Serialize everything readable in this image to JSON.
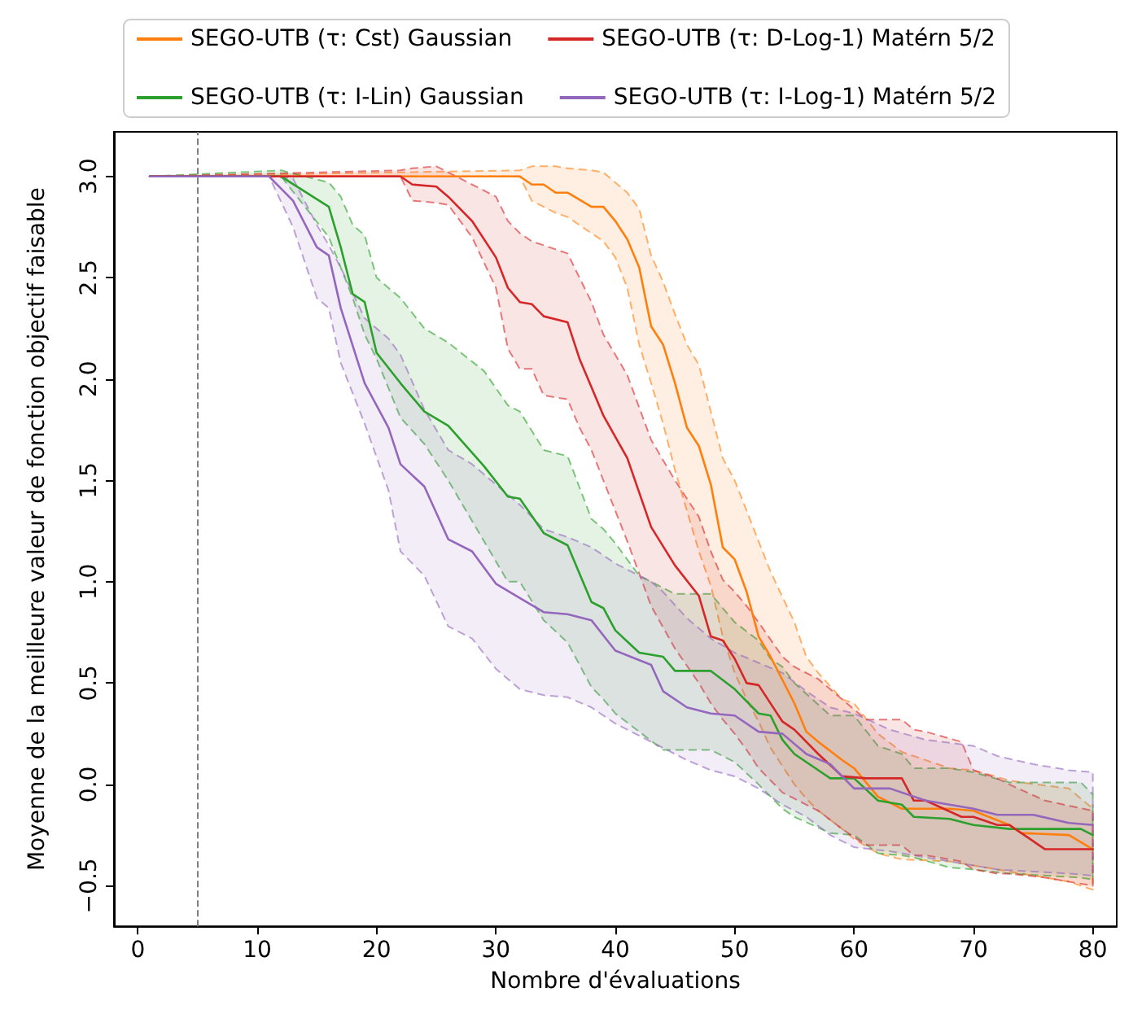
{
  "chart_data": {
    "type": "line",
    "xlabel": "Nombre d'évaluations",
    "ylabel": "Moyenne de la meilleure valeur de fonction objectif faisable",
    "xlim": [
      -2,
      82
    ],
    "xticks": [
      0,
      10,
      20,
      30,
      40,
      50,
      60,
      70,
      80
    ],
    "ylim": [
      -0.7,
      3.22
    ],
    "yticks": [
      {
        "value": -0.5,
        "label": "−0.5"
      },
      {
        "value": 0,
        "label": "0.0"
      },
      0.5,
      {
        "value": 1,
        "label": "1.0"
      },
      1.5,
      {
        "value": 2,
        "label": "2.0"
      },
      2.5,
      {
        "value": 3,
        "label": "3.0"
      }
    ],
    "legend": "top",
    "line_style": "solid",
    "marker": "none",
    "ref_lines": [
      {
        "axis": "x",
        "value": 5,
        "color": "#808080",
        "line_style": "dashed"
      }
    ],
    "series": [
      {
        "name": "SEGO-UTB (τ: Cst) Gaussian",
        "color": "#ff7f0e",
        "x": [
          1,
          32,
          33,
          34,
          35,
          36,
          38,
          39,
          40,
          41,
          42,
          43,
          44,
          45,
          46,
          47,
          48,
          49,
          50,
          51,
          52,
          53,
          55,
          56,
          57,
          59,
          60,
          62,
          64,
          68,
          70,
          73,
          74,
          78,
          80
        ],
        "values": [
          3,
          3,
          2.96,
          2.96,
          2.92,
          2.92,
          2.85,
          2.85,
          2.78,
          2.69,
          2.55,
          2.26,
          2.17,
          1.98,
          1.76,
          1.67,
          1.48,
          1.17,
          1.11,
          0.95,
          0.73,
          0.63,
          0.4,
          0.26,
          0.21,
          0.12,
          0.08,
          -0.06,
          -0.12,
          -0.12,
          -0.13,
          -0.2,
          -0.24,
          -0.25,
          -0.32
        ],
        "upper": [
          3,
          3.03,
          3.05,
          3.05,
          3.05,
          3.04,
          3.03,
          3.02,
          2.97,
          2.92,
          2.84,
          2.61,
          2.48,
          2.32,
          2.17,
          2.07,
          1.84,
          1.61,
          1.5,
          1.35,
          1.2,
          1.05,
          0.8,
          0.63,
          0.55,
          0.42,
          0.4,
          0.25,
          0.16,
          0.08,
          0.07,
          0.02,
          0.01,
          -0.02,
          -0.12
        ],
        "lower": [
          3,
          3.0,
          2.88,
          2.85,
          2.82,
          2.8,
          2.72,
          2.68,
          2.6,
          2.45,
          2.17,
          1.98,
          1.78,
          1.55,
          1.35,
          1.15,
          0.98,
          0.73,
          0.55,
          0.42,
          0.31,
          0.18,
          0.0,
          -0.07,
          -0.13,
          -0.22,
          -0.27,
          -0.34,
          -0.37,
          -0.38,
          -0.4,
          -0.43,
          -0.44,
          -0.48,
          -0.52
        ]
      },
      {
        "name": "SEGO-UTB (τ: I-Lin) Gaussian",
        "color": "#2ca02c",
        "x": [
          1,
          12,
          16,
          17,
          18,
          19,
          20,
          22,
          24,
          26,
          29,
          31,
          32,
          34,
          36,
          38,
          39,
          40,
          42,
          44,
          45,
          48,
          50,
          52,
          53,
          54,
          55,
          58,
          60,
          62,
          64,
          65,
          68,
          70,
          73,
          79,
          80
        ],
        "values": [
          3,
          3,
          2.85,
          2.65,
          2.42,
          2.38,
          2.13,
          1.98,
          1.84,
          1.77,
          1.57,
          1.42,
          1.41,
          1.24,
          1.18,
          0.9,
          0.87,
          0.76,
          0.65,
          0.63,
          0.56,
          0.56,
          0.47,
          0.35,
          0.34,
          0.22,
          0.15,
          0.03,
          0.03,
          -0.08,
          -0.1,
          -0.16,
          -0.17,
          -0.2,
          -0.22,
          -0.22,
          -0.25
        ],
        "upper": [
          3,
          3.03,
          2.97,
          2.9,
          2.76,
          2.71,
          2.5,
          2.4,
          2.25,
          2.18,
          2.04,
          1.87,
          1.84,
          1.65,
          1.62,
          1.31,
          1.26,
          1.19,
          1.03,
          0.97,
          0.94,
          0.94,
          0.8,
          0.71,
          0.62,
          0.58,
          0.5,
          0.34,
          0.34,
          0.19,
          0.15,
          0.08,
          0.08,
          0.06,
          0.01,
          0.01,
          -0.05
        ],
        "lower": [
          3,
          3.0,
          2.7,
          2.55,
          2.4,
          2.22,
          2.1,
          1.81,
          1.68,
          1.5,
          1.2,
          1.0,
          1.0,
          0.81,
          0.7,
          0.48,
          0.42,
          0.35,
          0.26,
          0.17,
          0.17,
          0.17,
          0.11,
          0.0,
          -0.06,
          -0.12,
          -0.16,
          -0.24,
          -0.25,
          -0.34,
          -0.35,
          -0.36,
          -0.41,
          -0.42,
          -0.44,
          -0.46,
          -0.47
        ]
      },
      {
        "name": "SEGO-UTB (τ: D-Log-1) Matérn 5/2",
        "color": "#d62728",
        "x": [
          1,
          22,
          23,
          25,
          26,
          28,
          30,
          31,
          32,
          33,
          34,
          36,
          37,
          38,
          39,
          41,
          43,
          45,
          47,
          48,
          49,
          50,
          51,
          52,
          54,
          55,
          57,
          59,
          61,
          64,
          65,
          66,
          69,
          70,
          72,
          73,
          76,
          80
        ],
        "values": [
          3,
          3,
          2.96,
          2.95,
          2.9,
          2.78,
          2.6,
          2.45,
          2.38,
          2.37,
          2.31,
          2.28,
          2.1,
          1.96,
          1.82,
          1.61,
          1.27,
          1.08,
          0.93,
          0.73,
          0.71,
          0.62,
          0.5,
          0.49,
          0.31,
          0.27,
          0.15,
          0.04,
          0.03,
          0.03,
          -0.08,
          -0.08,
          -0.16,
          -0.16,
          -0.2,
          -0.2,
          -0.32,
          -0.32
        ],
        "upper": [
          3,
          3.03,
          3.04,
          3.05,
          3.02,
          2.96,
          2.9,
          2.78,
          2.72,
          2.68,
          2.66,
          2.62,
          2.5,
          2.38,
          2.22,
          2.02,
          1.7,
          1.5,
          1.32,
          1.15,
          1.01,
          0.95,
          0.88,
          0.8,
          0.63,
          0.58,
          0.52,
          0.42,
          0.32,
          0.32,
          0.27,
          0.26,
          0.21,
          0.07,
          0.03,
          0.0,
          -0.08,
          -0.13
        ],
        "lower": [
          3,
          3.0,
          2.88,
          2.87,
          2.86,
          2.7,
          2.45,
          2.15,
          2.05,
          2.05,
          1.92,
          1.9,
          1.76,
          1.65,
          1.5,
          1.2,
          0.88,
          0.67,
          0.5,
          0.4,
          0.32,
          0.25,
          0.17,
          0.08,
          -0.04,
          -0.07,
          -0.13,
          -0.22,
          -0.3,
          -0.3,
          -0.35,
          -0.35,
          -0.38,
          -0.42,
          -0.44,
          -0.44,
          -0.46,
          -0.5
        ]
      },
      {
        "name": "SEGO-UTB (τ: I-Log-1) Matérn 5/2",
        "color": "#9467bd",
        "x": [
          1,
          11,
          13,
          15,
          16,
          17,
          19,
          21,
          22,
          24,
          26,
          28,
          30,
          32,
          34,
          36,
          38,
          40,
          43,
          44,
          46,
          48,
          50,
          52,
          54,
          56,
          58,
          60,
          63,
          66,
          70,
          72,
          75,
          78,
          80
        ],
        "values": [
          3,
          3,
          2.88,
          2.65,
          2.61,
          2.35,
          1.98,
          1.76,
          1.58,
          1.47,
          1.21,
          1.15,
          0.99,
          0.92,
          0.85,
          0.84,
          0.81,
          0.66,
          0.59,
          0.46,
          0.38,
          0.35,
          0.34,
          0.26,
          0.25,
          0.15,
          0.1,
          -0.02,
          -0.02,
          -0.08,
          -0.12,
          -0.15,
          -0.15,
          -0.19,
          -0.2
        ],
        "upper": [
          3,
          3.0,
          2.99,
          2.76,
          2.66,
          2.55,
          2.3,
          2.2,
          2.12,
          1.85,
          1.65,
          1.58,
          1.48,
          1.38,
          1.26,
          1.22,
          1.17,
          1.09,
          1.0,
          0.95,
          0.82,
          0.72,
          0.65,
          0.6,
          0.55,
          0.46,
          0.38,
          0.35,
          0.27,
          0.22,
          0.19,
          0.14,
          0.1,
          0.07,
          0.06
        ],
        "lower": [
          3,
          3.0,
          2.75,
          2.4,
          2.35,
          2.08,
          1.78,
          1.45,
          1.15,
          1.03,
          0.78,
          0.72,
          0.57,
          0.47,
          0.44,
          0.43,
          0.38,
          0.3,
          0.21,
          0.18,
          0.12,
          0.07,
          0.04,
          -0.02,
          -0.1,
          -0.16,
          -0.25,
          -0.31,
          -0.33,
          -0.36,
          -0.4,
          -0.42,
          -0.43,
          -0.44,
          -0.45
        ]
      }
    ]
  }
}
